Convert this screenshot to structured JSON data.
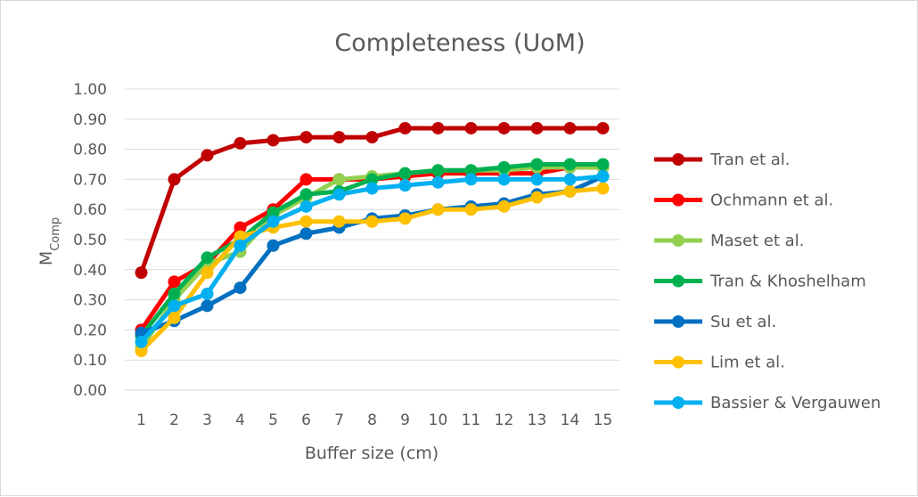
{
  "chart_data": {
    "type": "line",
    "title": "Completeness (UoM)",
    "xlabel": "Buffer size (cm)",
    "ylabel": "M",
    "ylabel_sub": "Comp",
    "x": [
      1,
      2,
      3,
      4,
      5,
      6,
      7,
      8,
      9,
      10,
      11,
      12,
      13,
      14,
      15
    ],
    "ylim": [
      0,
      1
    ],
    "yticks": [
      "0.00",
      "0.10",
      "0.20",
      "0.30",
      "0.40",
      "0.50",
      "0.60",
      "0.70",
      "0.80",
      "0.90",
      "1.00"
    ],
    "grid": true,
    "legend_position": "right",
    "series": [
      {
        "name": "Tran et al.",
        "color": "#c00000",
        "values": [
          0.39,
          0.7,
          0.78,
          0.82,
          0.83,
          0.84,
          0.84,
          0.84,
          0.87,
          0.87,
          0.87,
          0.87,
          0.87,
          0.87,
          0.87
        ]
      },
      {
        "name": "Ochmann et al.",
        "color": "#ff0000",
        "values": [
          0.2,
          0.36,
          0.42,
          0.54,
          0.6,
          0.7,
          0.7,
          0.7,
          0.71,
          0.72,
          0.72,
          0.72,
          0.72,
          0.74,
          0.74
        ]
      },
      {
        "name": "Maset et al.",
        "color": "#92d050",
        "values": [
          0.14,
          0.3,
          0.42,
          0.46,
          0.58,
          0.64,
          0.7,
          0.71,
          0.72,
          0.73,
          0.73,
          0.73,
          0.74,
          0.74,
          0.74
        ]
      },
      {
        "name": "Tran & Khoshelham",
        "color": "#00b050",
        "values": [
          0.18,
          0.32,
          0.44,
          0.5,
          0.59,
          0.65,
          0.66,
          0.7,
          0.72,
          0.73,
          0.73,
          0.74,
          0.75,
          0.75,
          0.75
        ]
      },
      {
        "name": "Su et al.",
        "color": "#0070c0",
        "values": [
          0.19,
          0.23,
          0.28,
          0.34,
          0.48,
          0.52,
          0.54,
          0.57,
          0.58,
          0.6,
          0.61,
          0.62,
          0.65,
          0.66,
          0.71
        ]
      },
      {
        "name": "Lim et al.",
        "color": "#ffc000",
        "values": [
          0.13,
          0.24,
          0.39,
          0.51,
          0.54,
          0.56,
          0.56,
          0.56,
          0.57,
          0.6,
          0.6,
          0.61,
          0.64,
          0.66,
          0.67
        ]
      },
      {
        "name": "Bassier & Vergauwen",
        "color": "#00b0f0",
        "values": [
          0.16,
          0.28,
          0.32,
          0.48,
          0.56,
          0.61,
          0.65,
          0.67,
          0.68,
          0.69,
          0.7,
          0.7,
          0.7,
          0.7,
          0.71
        ]
      }
    ]
  }
}
